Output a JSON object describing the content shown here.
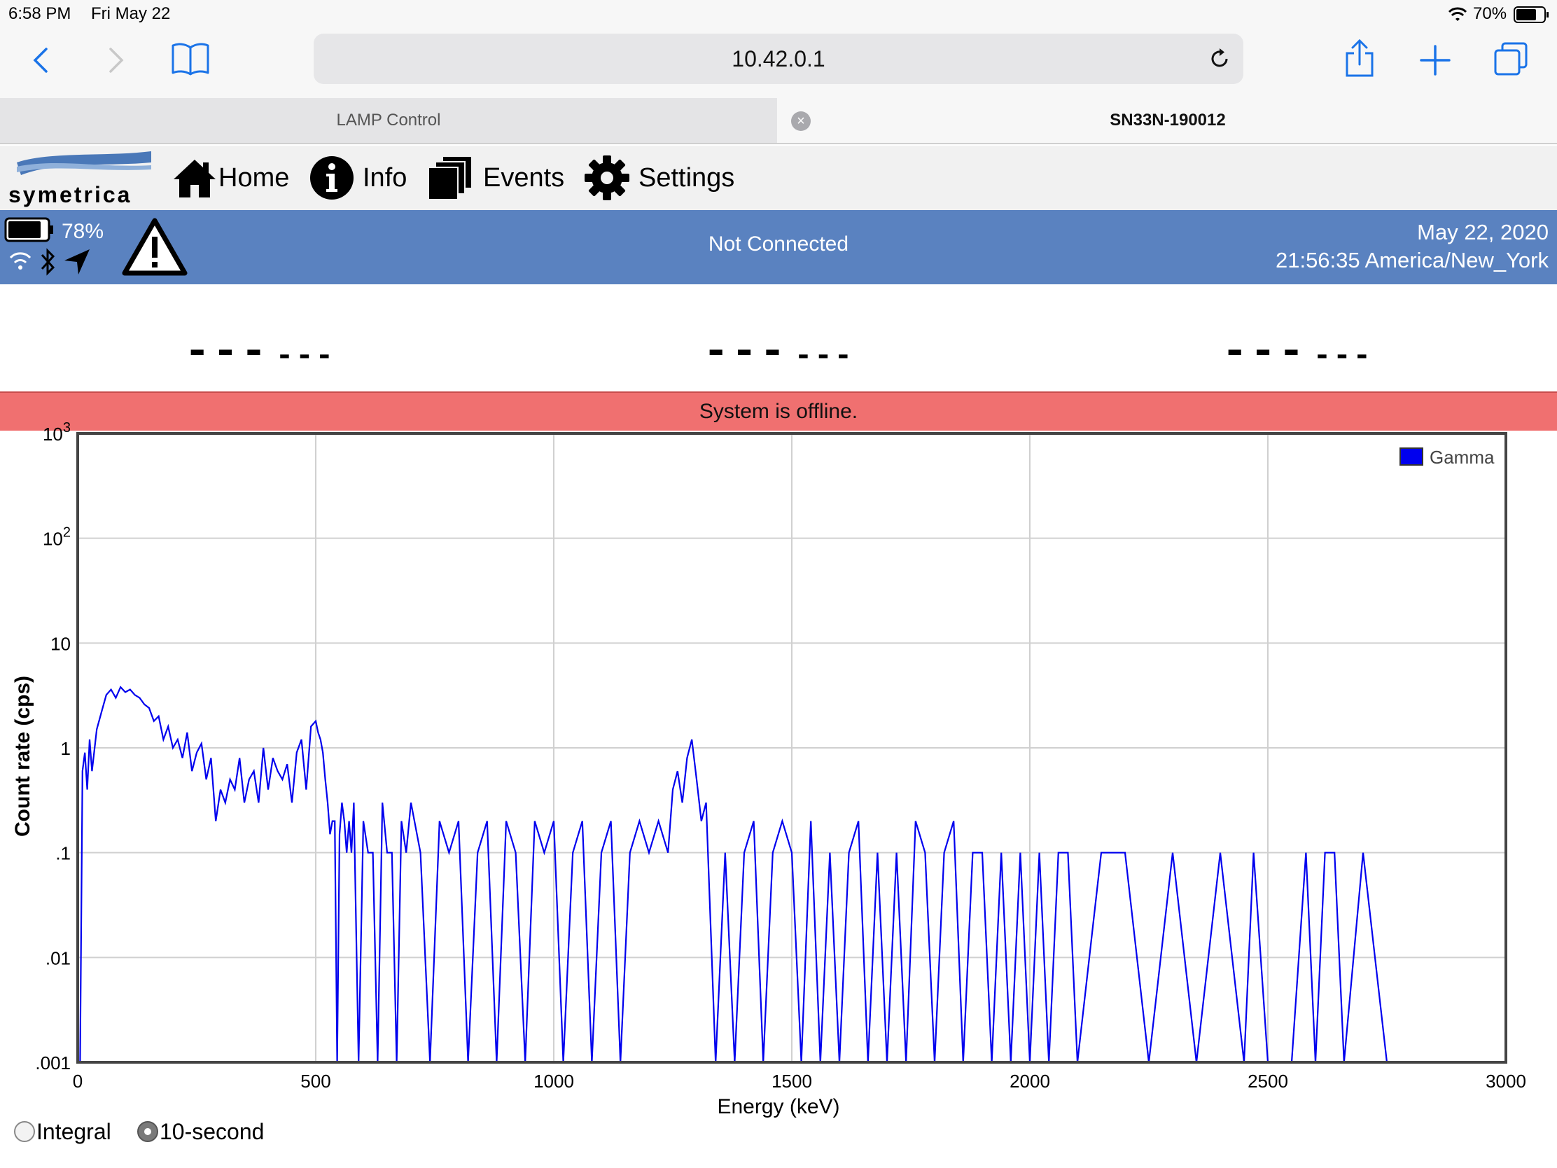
{
  "status_bar": {
    "time": "6:58 PM",
    "date": "Fri May 22",
    "battery_percent": "70%"
  },
  "browser": {
    "url": "10.42.0.1",
    "tabs": [
      {
        "label": "LAMP Control",
        "active": false
      },
      {
        "label": "SN33N-190012",
        "active": true
      }
    ]
  },
  "app": {
    "logo_text": "symetrica",
    "nav": [
      {
        "label": "Home",
        "icon": "home-icon"
      },
      {
        "label": "Info",
        "icon": "info-icon"
      },
      {
        "label": "Events",
        "icon": "events-icon"
      },
      {
        "label": "Settings",
        "icon": "gear-icon"
      }
    ]
  },
  "banner": {
    "device_battery": "78%",
    "connection": "Not Connected",
    "date": "May 22, 2020",
    "time": "21:56:35 America/New_York",
    "color": "#5a82c0"
  },
  "readings": [
    {
      "value": "---",
      "unit": "---"
    },
    {
      "value": "---",
      "unit": "---"
    },
    {
      "value": "---",
      "unit": "---"
    }
  ],
  "alert": {
    "message": "System is offline.",
    "color": "#f07070"
  },
  "controls": {
    "mode_options": [
      {
        "label": "Integral",
        "selected": false
      },
      {
        "label": "10-second",
        "selected": true
      }
    ]
  },
  "chart_data": {
    "type": "line",
    "xlabel": "Energy (keV)",
    "ylabel": "Count rate (cps)",
    "xlim": [
      0,
      3000
    ],
    "ylim": [
      0.001,
      1000
    ],
    "yscale": "log",
    "x_ticks": [
      "0",
      "500",
      "1000",
      "1500",
      "2000",
      "2500",
      "3000"
    ],
    "y_ticks": [
      ".001",
      ".01",
      ".1",
      "1",
      "10",
      "10^2",
      "10^3"
    ],
    "grid": true,
    "legend_position": "top-right",
    "series": [
      {
        "name": "Gamma",
        "color": "#0000ee",
        "x": [
          5,
          10,
          15,
          20,
          25,
          30,
          40,
          50,
          60,
          70,
          80,
          90,
          100,
          110,
          120,
          130,
          140,
          150,
          160,
          170,
          180,
          190,
          200,
          210,
          220,
          230,
          240,
          250,
          260,
          270,
          280,
          290,
          300,
          310,
          320,
          330,
          340,
          350,
          360,
          370,
          380,
          390,
          400,
          410,
          420,
          430,
          440,
          450,
          460,
          470,
          480,
          490,
          500,
          505,
          510,
          515,
          520,
          525,
          530,
          535,
          540,
          545,
          550,
          555,
          560,
          565,
          570,
          575,
          580,
          590,
          600,
          610,
          620,
          630,
          640,
          650,
          660,
          670,
          680,
          690,
          700,
          720,
          740,
          760,
          780,
          800,
          820,
          840,
          860,
          880,
          900,
          920,
          940,
          960,
          980,
          1000,
          1020,
          1040,
          1060,
          1080,
          1100,
          1120,
          1140,
          1160,
          1180,
          1200,
          1220,
          1240,
          1250,
          1260,
          1270,
          1280,
          1290,
          1300,
          1310,
          1320,
          1340,
          1360,
          1380,
          1400,
          1420,
          1440,
          1460,
          1480,
          1500,
          1520,
          1540,
          1560,
          1580,
          1600,
          1620,
          1640,
          1660,
          1680,
          1700,
          1720,
          1740,
          1760,
          1780,
          1800,
          1820,
          1840,
          1860,
          1880,
          1900,
          1920,
          1940,
          1960,
          1980,
          2000,
          2020,
          2040,
          2060,
          2080,
          2100,
          2150,
          2200,
          2250,
          2300,
          2350,
          2400,
          2450,
          2470,
          2500,
          2550,
          2580,
          2600,
          2620,
          2640,
          2660,
          2700,
          2750
        ],
        "y": [
          0.001,
          0.6,
          0.9,
          0.4,
          1.2,
          0.6,
          1.5,
          2.2,
          3.2,
          3.6,
          3.0,
          3.8,
          3.4,
          3.6,
          3.2,
          3.0,
          2.6,
          2.4,
          1.8,
          2.0,
          1.2,
          1.6,
          1.0,
          1.2,
          0.8,
          1.4,
          0.6,
          0.9,
          1.1,
          0.5,
          0.8,
          0.2,
          0.4,
          0.3,
          0.5,
          0.4,
          0.8,
          0.3,
          0.5,
          0.6,
          0.3,
          1.0,
          0.4,
          0.8,
          0.6,
          0.5,
          0.7,
          0.3,
          0.9,
          1.2,
          0.4,
          1.6,
          1.8,
          1.4,
          1.2,
          0.9,
          0.5,
          0.3,
          0.15,
          0.2,
          0.2,
          0.001,
          0.15,
          0.3,
          0.2,
          0.1,
          0.2,
          0.1,
          0.3,
          0.001,
          0.2,
          0.1,
          0.1,
          0.001,
          0.3,
          0.1,
          0.1,
          0.001,
          0.2,
          0.1,
          0.3,
          0.1,
          0.001,
          0.2,
          0.1,
          0.2,
          0.001,
          0.1,
          0.2,
          0.001,
          0.2,
          0.1,
          0.001,
          0.2,
          0.1,
          0.2,
          0.001,
          0.1,
          0.2,
          0.001,
          0.1,
          0.2,
          0.001,
          0.1,
          0.2,
          0.1,
          0.2,
          0.1,
          0.4,
          0.6,
          0.3,
          0.8,
          1.2,
          0.5,
          0.2,
          0.3,
          0.001,
          0.1,
          0.001,
          0.1,
          0.2,
          0.001,
          0.1,
          0.2,
          0.1,
          0.001,
          0.2,
          0.001,
          0.1,
          0.001,
          0.1,
          0.2,
          0.001,
          0.1,
          0.001,
          0.1,
          0.001,
          0.2,
          0.1,
          0.001,
          0.1,
          0.2,
          0.001,
          0.1,
          0.1,
          0.001,
          0.1,
          0.001,
          0.1,
          0.001,
          0.1,
          0.001,
          0.1,
          0.1,
          0.001,
          0.1,
          0.1,
          0.001,
          0.1,
          0.001,
          0.1,
          0.001,
          0.1,
          0.001,
          0.001,
          0.1,
          0.001,
          0.1,
          0.1,
          0.001,
          0.1,
          0.001
        ]
      }
    ]
  }
}
